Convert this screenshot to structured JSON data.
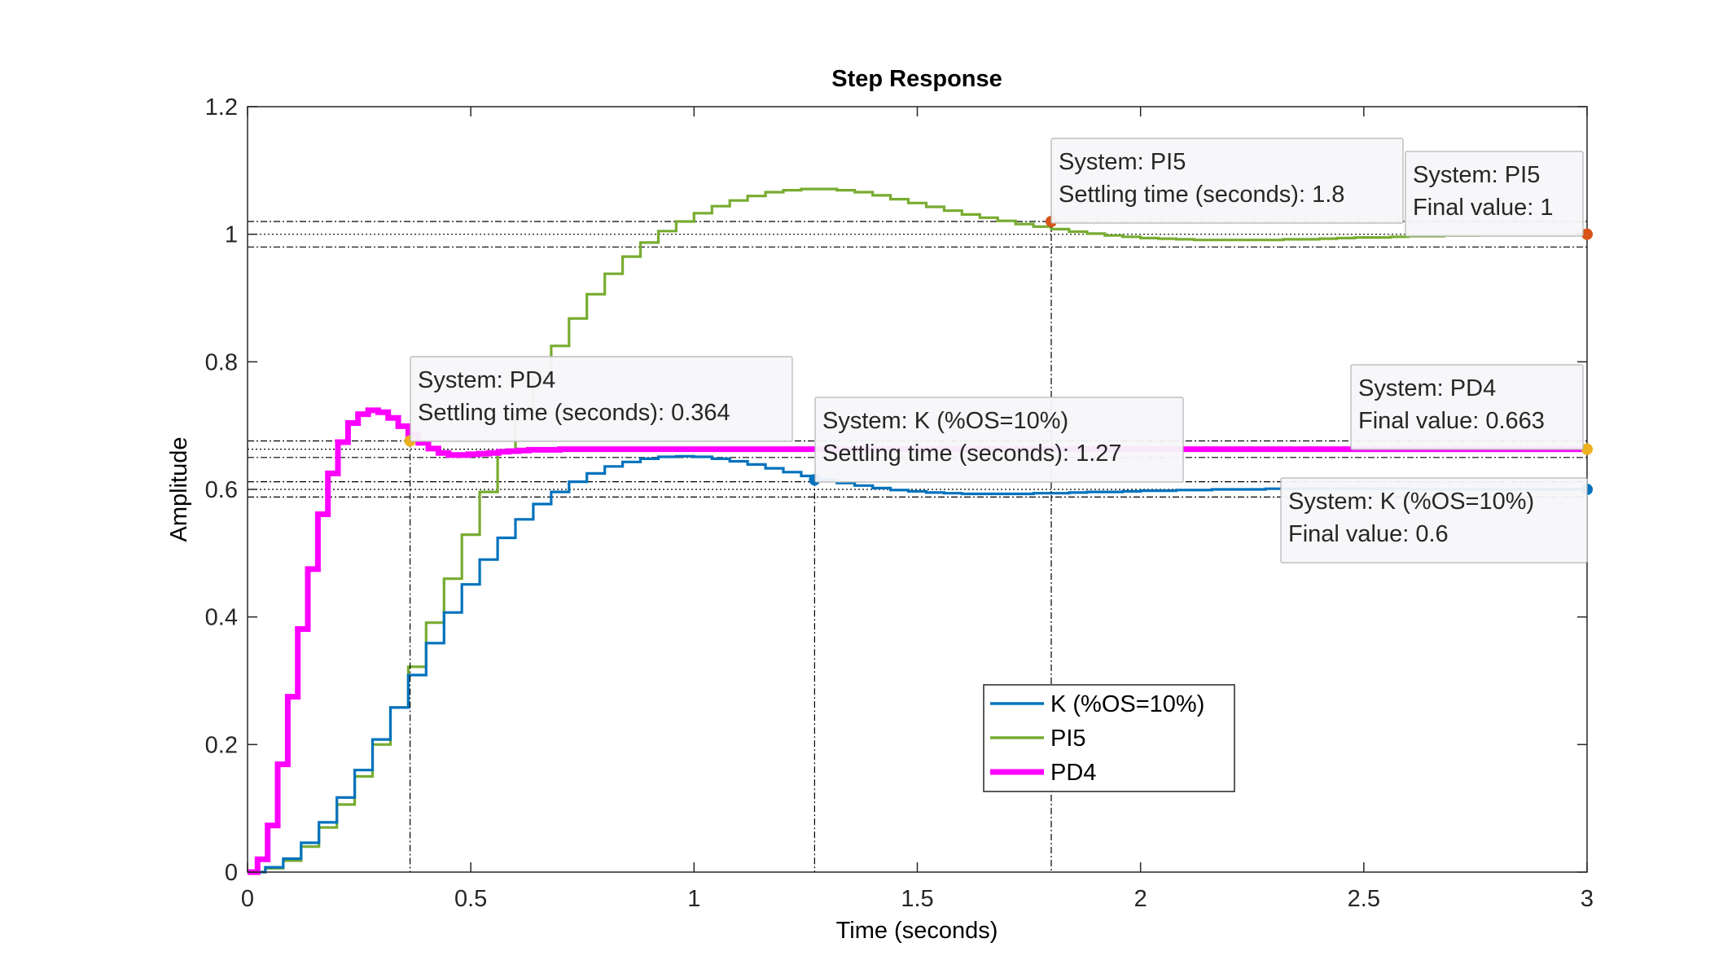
{
  "chart_data": {
    "type": "line",
    "title": "Step Response",
    "xlabel": "Time (seconds)",
    "ylabel": "Amplitude",
    "xlim": [
      0,
      3
    ],
    "ylim": [
      0,
      1.2
    ],
    "xticks": [
      0,
      0.5,
      1,
      1.5,
      2,
      2.5,
      3
    ],
    "xtick_labels": [
      "0",
      "0.5",
      "1",
      "1.5",
      "2",
      "2.5",
      "3"
    ],
    "yticks": [
      0,
      0.2,
      0.4,
      0.6,
      0.8,
      1,
      1.2
    ],
    "ytick_labels": [
      "0",
      "0.2",
      "0.4",
      "0.6",
      "0.8",
      "1",
      "1.2"
    ],
    "grid": false,
    "legend_position": "lower-center",
    "series": [
      {
        "name": "K (%OS=10%)",
        "color": "#0072BD",
        "final_value": 0.6,
        "settling_time": 1.27,
        "x": [
          0,
          0.04,
          0.08,
          0.12,
          0.16,
          0.2,
          0.24,
          0.28,
          0.32,
          0.36,
          0.4,
          0.44,
          0.48,
          0.52,
          0.56,
          0.6,
          0.64,
          0.68,
          0.72,
          0.76,
          0.8,
          0.84,
          0.88,
          0.92,
          0.96,
          1.0,
          1.04,
          1.08,
          1.12,
          1.16,
          1.2,
          1.24,
          1.28,
          1.32,
          1.36,
          1.4,
          1.44,
          1.48,
          1.52,
          1.56,
          1.6,
          1.64,
          1.68,
          1.72,
          1.76,
          1.8,
          1.84,
          1.88,
          1.92,
          1.96,
          2.0,
          2.04,
          2.08,
          2.12,
          2.16,
          2.2,
          2.24,
          2.28,
          2.32,
          2.36,
          2.4,
          2.44,
          2.48,
          2.52,
          2.56,
          2.6,
          2.64,
          2.68,
          2.72,
          2.76,
          2.8,
          2.84,
          2.88,
          2.92,
          2.96,
          3.0
        ],
        "y": [
          0,
          0.0075,
          0.021,
          0.046,
          0.078,
          0.117,
          0.16,
          0.208,
          0.258,
          0.309,
          0.359,
          0.407,
          0.451,
          0.49,
          0.524,
          0.553,
          0.577,
          0.596,
          0.612,
          0.625,
          0.636,
          0.643,
          0.648,
          0.651,
          0.652,
          0.651,
          0.648,
          0.644,
          0.639,
          0.633,
          0.627,
          0.621,
          0.615,
          0.61,
          0.606,
          0.602,
          0.599,
          0.597,
          0.595,
          0.594,
          0.593,
          0.593,
          0.593,
          0.593,
          0.594,
          0.594,
          0.595,
          0.596,
          0.596,
          0.597,
          0.598,
          0.598,
          0.599,
          0.599,
          0.6,
          0.6,
          0.6,
          0.601,
          0.601,
          0.601,
          0.601,
          0.601,
          0.601,
          0.601,
          0.601,
          0.6,
          0.6,
          0.6,
          0.6,
          0.6,
          0.6,
          0.6,
          0.6,
          0.6,
          0.6,
          0.6
        ]
      },
      {
        "name": "PI5",
        "color": "#77AC30",
        "final_value": 1,
        "settling_time": 1.8,
        "x": [
          0,
          0.04,
          0.08,
          0.12,
          0.16,
          0.2,
          0.24,
          0.28,
          0.32,
          0.36,
          0.4,
          0.44,
          0.48,
          0.52,
          0.56,
          0.6,
          0.64,
          0.68,
          0.72,
          0.76,
          0.8,
          0.84,
          0.88,
          0.92,
          0.96,
          1.0,
          1.04,
          1.08,
          1.12,
          1.16,
          1.2,
          1.24,
          1.28,
          1.32,
          1.36,
          1.4,
          1.44,
          1.48,
          1.52,
          1.56,
          1.6,
          1.64,
          1.68,
          1.72,
          1.76,
          1.8,
          1.84,
          1.88,
          1.92,
          1.96,
          2.0,
          2.04,
          2.08,
          2.12,
          2.16,
          2.2,
          2.24,
          2.28,
          2.32,
          2.36,
          2.4,
          2.44,
          2.48,
          2.52,
          2.56,
          2.6,
          2.64,
          2.68,
          2.72,
          2.76,
          2.8,
          2.84,
          2.88,
          2.92,
          2.96,
          3.0
        ],
        "y": [
          0,
          0.006,
          0.018,
          0.04,
          0.07,
          0.106,
          0.15,
          0.2,
          0.258,
          0.322,
          0.391,
          0.46,
          0.529,
          0.596,
          0.66,
          0.72,
          0.775,
          0.825,
          0.868,
          0.906,
          0.938,
          0.965,
          0.987,
          1.005,
          1.02,
          1.033,
          1.044,
          1.053,
          1.06,
          1.066,
          1.069,
          1.071,
          1.071,
          1.069,
          1.066,
          1.061,
          1.055,
          1.049,
          1.043,
          1.037,
          1.031,
          1.026,
          1.021,
          1.016,
          1.012,
          1.008,
          1.004,
          1.001,
          0.998,
          0.996,
          0.994,
          0.993,
          0.992,
          0.991,
          0.991,
          0.991,
          0.991,
          0.991,
          0.992,
          0.992,
          0.993,
          0.994,
          0.995,
          0.995,
          0.996,
          0.997,
          0.997,
          0.998,
          0.998,
          0.999,
          0.999,
          0.999,
          1.0,
          1.0,
          1.0,
          1.0
        ]
      },
      {
        "name": "PD4",
        "color": "#FF00FF",
        "final_value": 0.663,
        "settling_time": 0.364,
        "x": [
          0,
          0.0225,
          0.045,
          0.0675,
          0.09,
          0.1125,
          0.135,
          0.1575,
          0.18,
          0.2025,
          0.225,
          0.2475,
          0.27,
          0.2925,
          0.315,
          0.3375,
          0.36,
          0.3825,
          0.405,
          0.4275,
          0.45,
          0.4725,
          0.495,
          0.5175,
          0.54,
          0.5625,
          0.585,
          0.6075,
          0.63,
          0.7,
          0.8,
          0.9,
          1.0,
          1.2,
          1.5,
          2.0,
          2.5,
          3.0
        ],
        "y": [
          0,
          0.02,
          0.073,
          0.169,
          0.275,
          0.381,
          0.475,
          0.561,
          0.625,
          0.674,
          0.704,
          0.718,
          0.724,
          0.721,
          0.712,
          0.699,
          0.686,
          0.673,
          0.664,
          0.657,
          0.654,
          0.654,
          0.655,
          0.656,
          0.657,
          0.659,
          0.66,
          0.661,
          0.662,
          0.663,
          0.663,
          0.663,
          0.663,
          0.663,
          0.663,
          0.663,
          0.663,
          0.663
        ]
      }
    ],
    "annotations": [
      {
        "series": "K (%OS=10%)",
        "x": 1.27,
        "y": 0.615,
        "lines": [
          "System: K (%OS=10%)",
          "Settling time (seconds): 1.27"
        ]
      },
      {
        "series": "K (%OS=10%)",
        "x": 3,
        "y": 0.6,
        "lines": [
          "System: K (%OS=10%)",
          "Final value: 0.6"
        ]
      },
      {
        "series": "PI5",
        "x": 1.8,
        "y": 1.02,
        "lines": [
          "System: PI5",
          "Settling time (seconds): 1.8"
        ]
      },
      {
        "series": "PI5",
        "x": 3,
        "y": 1.0,
        "lines": [
          "System: PI5",
          "Final value: 1"
        ]
      },
      {
        "series": "PD4",
        "x": 0.364,
        "y": 0.676,
        "lines": [
          "System: PD4",
          "Settling time (seconds): 0.364"
        ]
      },
      {
        "series": "PD4",
        "x": 3,
        "y": 0.663,
        "lines": [
          "System: PD4",
          "Final value: 0.663"
        ]
      }
    ],
    "marker_colors": {
      "K (%OS=10%)": "#0072BD",
      "PI5": "#D95319",
      "PD4": "#EDB120"
    },
    "settling_band_levels": [
      1.02,
      1.0,
      0.98,
      0.676,
      0.663,
      0.65,
      0.612,
      0.6,
      0.588
    ]
  }
}
